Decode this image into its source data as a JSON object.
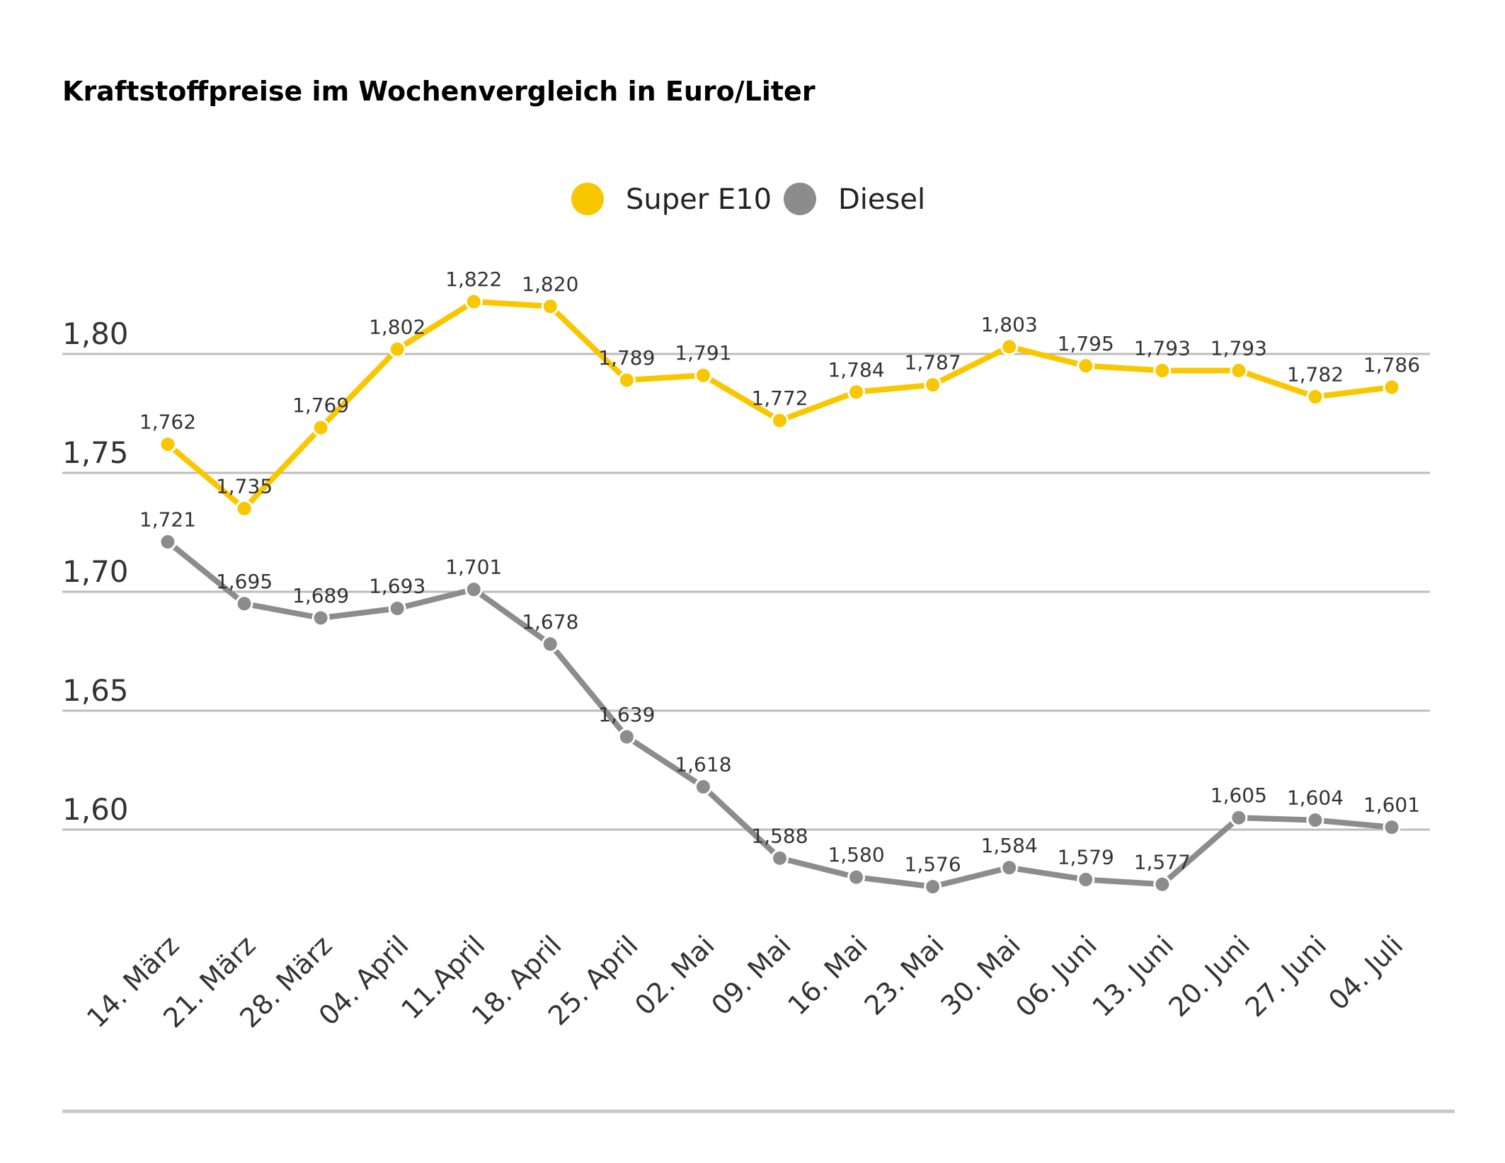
{
  "chart_data": {
    "type": "line",
    "title": "Kraftstoffpreise im Wochenvergleich in Euro/Liter",
    "xlabel": "",
    "ylabel": "",
    "categories": [
      "14. März",
      "21. März",
      "28. März",
      "04. April",
      "11.April",
      "18. April",
      "25. April",
      "02. Mai",
      "09. Mai",
      "16. Mai",
      "23. Mai",
      "30. Mai",
      "06. Juni",
      "13. Juni",
      "20. Juni",
      "27. Juni",
      "04. Juli"
    ],
    "series": [
      {
        "name": "Super E10",
        "color": "#F9C700",
        "values": [
          1.762,
          1.735,
          1.769,
          1.802,
          1.822,
          1.82,
          1.789,
          1.791,
          1.772,
          1.784,
          1.787,
          1.803,
          1.795,
          1.793,
          1.793,
          1.782,
          1.786
        ],
        "labels": [
          "1,762",
          "1,735",
          "1,769",
          "1,802",
          "1,822",
          "1,820",
          "1,789",
          "1,791",
          "1,772",
          "1,784",
          "1,787",
          "1,803",
          "1,795",
          "1,793",
          "1,793",
          "1,782",
          "1,786"
        ]
      },
      {
        "name": "Diesel",
        "color": "#8C8C8C",
        "values": [
          1.721,
          1.695,
          1.689,
          1.693,
          1.701,
          1.678,
          1.639,
          1.618,
          1.588,
          1.58,
          1.576,
          1.584,
          1.579,
          1.577,
          1.605,
          1.604,
          1.601
        ],
        "labels": [
          "1,721",
          "1,695",
          "1,689",
          "1,693",
          "1,701",
          "1,678",
          "1,639",
          "1,618",
          "1,588",
          "1,580",
          "1,576",
          "1,584",
          "1,579",
          "1,577",
          "1,605",
          "1,604",
          "1,601"
        ]
      }
    ],
    "yticks": [
      1.6,
      1.65,
      1.7,
      1.75,
      1.8
    ],
    "ytick_labels": [
      "1,60",
      "1,65",
      "1,70",
      "1,75",
      "1,80"
    ],
    "ylim": [
      1.56,
      1.84
    ],
    "grid": true,
    "legend": "top-center"
  }
}
